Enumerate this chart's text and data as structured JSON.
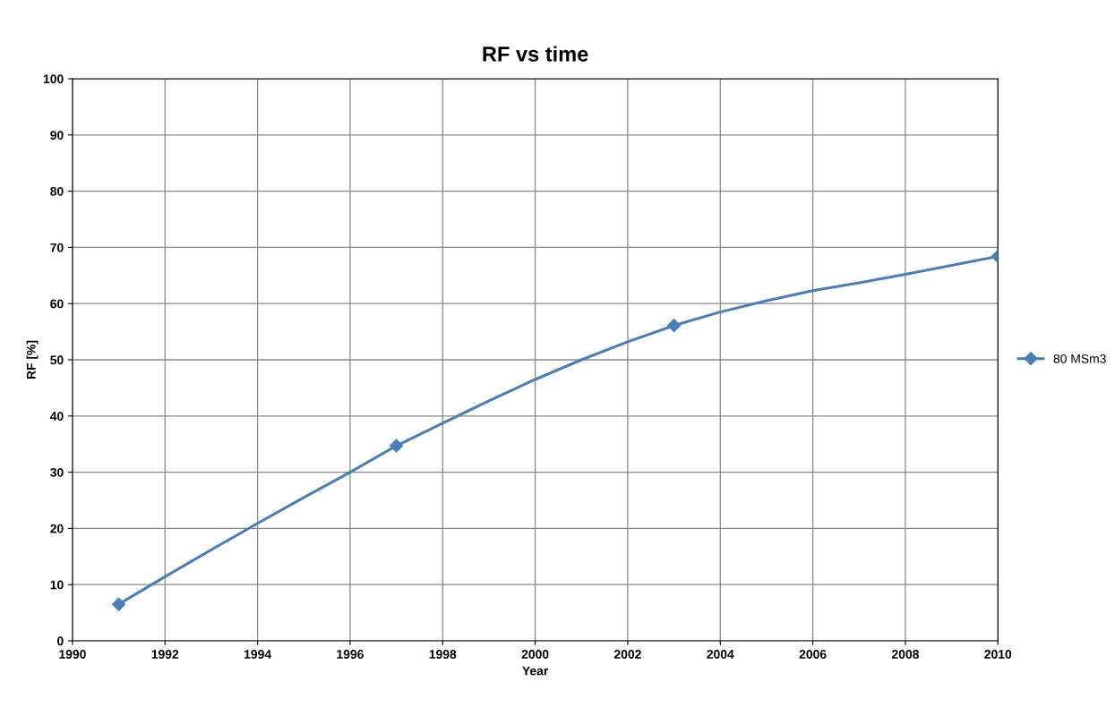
{
  "chart_data": {
    "type": "line",
    "title": "RF vs time",
    "xlabel": "Year",
    "ylabel": "RF [%]",
    "x": [
      1991,
      1992,
      1993,
      1994,
      1995,
      1996,
      1997,
      1998,
      1999,
      2000,
      2001,
      2002,
      2003,
      2004,
      2005,
      2006,
      2007,
      2008,
      2009,
      2010
    ],
    "series": [
      {
        "name": "80 MSm3",
        "color": "#4a7ebb",
        "marker": "none",
        "values": [
          6.5,
          11.4,
          16.2,
          20.9,
          25.5,
          30.0,
          34.7,
          38.7,
          42.7,
          46.5,
          50.0,
          53.2,
          56.1,
          58.5,
          60.5,
          62.3,
          63.7,
          65.2,
          66.8,
          68.4
        ]
      },
      {
        "type": "scatter",
        "color": "#4a7ebb",
        "marker": "diamond",
        "x": [
          1991,
          1997,
          2003,
          2010
        ],
        "values": [
          6.5,
          34.7,
          56.1,
          68.4
        ]
      }
    ],
    "xlim": [
      1990,
      2010
    ],
    "xticks": [
      1990,
      1992,
      1994,
      1996,
      1998,
      2000,
      2002,
      2004,
      2006,
      2008,
      2010
    ],
    "ylim": [
      0,
      100
    ],
    "yticks": [
      0,
      10,
      20,
      30,
      40,
      50,
      60,
      70,
      80,
      90,
      100
    ],
    "grid": true,
    "legend": "right",
    "line_style": "solid"
  }
}
